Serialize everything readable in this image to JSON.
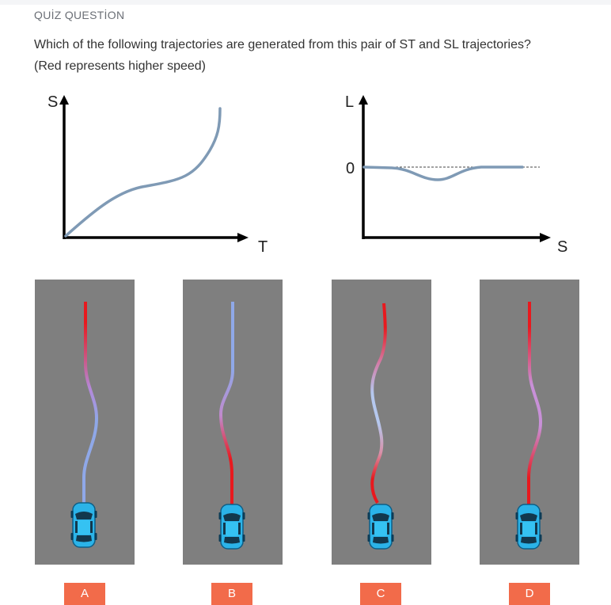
{
  "quiz": {
    "label": "QUİZ QUESTİON",
    "question_line1": "Which of the following trajectories are generated from this pair of ST and SL trajectories?",
    "question_line2": "(Red represents higher speed)"
  },
  "st_graph": {
    "y_label": "S",
    "x_label": "T",
    "curve_color": "#7f9ab5"
  },
  "sl_graph": {
    "y_label": "L",
    "x_label": "S",
    "zero_label": "0",
    "curve_color": "#7f9ab5"
  },
  "options": [
    {
      "label": "A",
      "road_color": "#7f7f7f",
      "car_color": "#2bb3e8"
    },
    {
      "label": "B",
      "road_color": "#7f7f7f",
      "car_color": "#2bb3e8"
    },
    {
      "label": "C",
      "road_color": "#7f7f7f",
      "car_color": "#2bb3e8"
    },
    {
      "label": "D",
      "road_color": "#7f7f7f",
      "car_color": "#2bb3e8"
    }
  ],
  "colors": {
    "button": "#f26b4a",
    "high_speed": "#e8191e",
    "low_speed": "#8fa8e8"
  }
}
